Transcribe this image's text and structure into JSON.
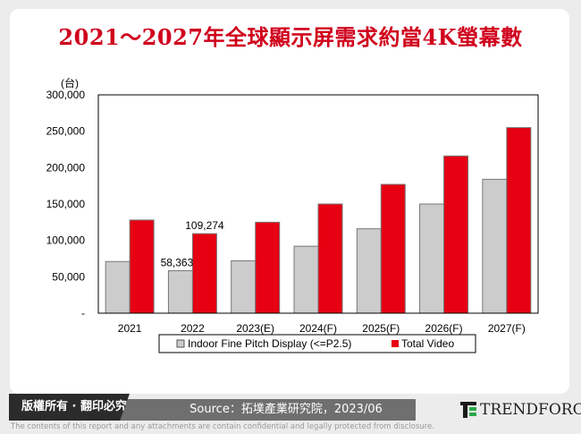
{
  "title": "2021～2027年全球顯示屏需求約當4K螢幕數",
  "chart_data": {
    "type": "bar",
    "title": "2021～2027年全球顯示屏需求約當4K螢幕數",
    "ylabel": "(台)",
    "xlabel": "",
    "ylim": [
      0,
      300000
    ],
    "yticks": [
      "-",
      "50,000",
      "100,000",
      "150,000",
      "200,000",
      "250,000",
      "300,000"
    ],
    "categories": [
      "2021",
      "2022",
      "2023(E)",
      "2024(F)",
      "2025(F)",
      "2026(F)",
      "2027(F)"
    ],
    "series": [
      {
        "name": "Indoor Fine Pitch Display (<=P2.5)",
        "color": "#cccccc",
        "values": [
          71000,
          58363,
          72000,
          92000,
          116000,
          150000,
          184000
        ]
      },
      {
        "name": "Total Video",
        "color": "#e60012",
        "values": [
          128000,
          109274,
          125000,
          150000,
          177000,
          216000,
          255000
        ]
      }
    ],
    "data_labels": [
      {
        "series": 0,
        "index": 1,
        "text": "58,363"
      },
      {
        "series": 1,
        "index": 1,
        "text": "109,274"
      }
    ],
    "grid": false,
    "legend_position": "bottom"
  },
  "footer": {
    "copyright": "版權所有 · 翻印必究",
    "source": "Source：拓墣產業研究院，2023/06",
    "logo": "TRENDFORCE",
    "disclaimer": "The contents of this report and any attachments are contain confidential and legally protected from disclosure."
  }
}
